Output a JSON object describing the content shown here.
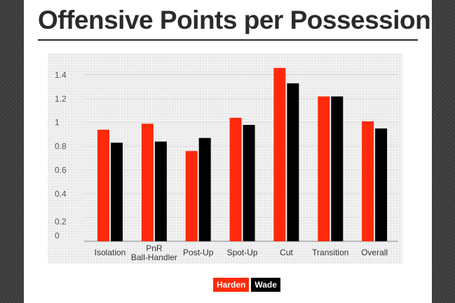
{
  "page": {
    "title": "Offensive Points per Possession"
  },
  "colors": {
    "harden": "#ff2a0a",
    "wade": "#000000",
    "axis_text": "#555555"
  },
  "chart_data": {
    "type": "bar",
    "title": "Offensive Points per Possession",
    "xlabel": "",
    "ylabel": "",
    "ylim": [
      0,
      1.5
    ],
    "yticks": [
      {
        "value": 0,
        "label": "0"
      },
      {
        "value": 0.2,
        "label": "0.2"
      },
      {
        "value": 0.4,
        "label": "0.4"
      },
      {
        "value": 0.6,
        "label": "0.6"
      },
      {
        "value": 0.8,
        "label": "0.8"
      },
      {
        "value": 1.0,
        "label": "1"
      },
      {
        "value": 1.2,
        "label": "1.2"
      },
      {
        "value": 1.4,
        "label": "1.4"
      }
    ],
    "categories": [
      "Isolation",
      "PnR\nBall-Handler",
      "Post-Up",
      "Spot-Up",
      "Cut",
      "Transition",
      "Overall"
    ],
    "series": [
      {
        "name": "Harden",
        "color": "#ff2a0a",
        "values": [
          0.94,
          0.99,
          0.76,
          1.04,
          1.46,
          1.22,
          1.01
        ]
      },
      {
        "name": "Wade",
        "color": "#000000",
        "values": [
          0.83,
          0.84,
          0.87,
          0.98,
          1.33,
          1.22,
          0.95
        ]
      }
    ],
    "grid": true,
    "legend_position": "bottom"
  }
}
